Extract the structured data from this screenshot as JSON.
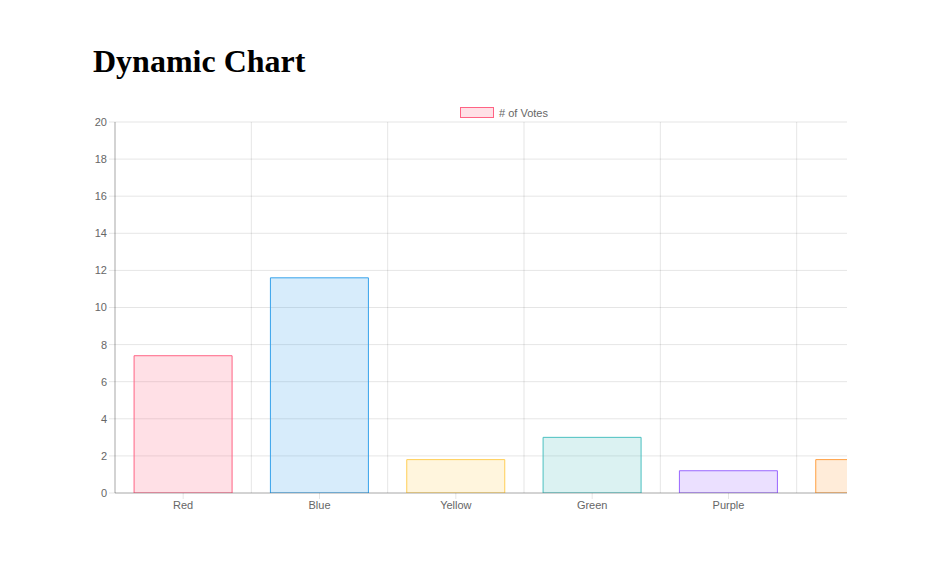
{
  "chart_data": {
    "type": "bar",
    "title": "Dynamic Chart",
    "categories": [
      "Red",
      "Blue",
      "Yellow",
      "Green",
      "Purple",
      null
    ],
    "series": [
      {
        "name": "# of Votes",
        "values": [
          7.4,
          11.6,
          1.8,
          3.0,
          1.2,
          1.8
        ]
      }
    ],
    "colors": [
      "#ff6384",
      "#36a2eb",
      "#ffce56",
      "#4bc0c0",
      "#9966ff",
      "#ff9f40"
    ],
    "ylim": [
      0,
      20
    ],
    "yticks": [
      0,
      2,
      4,
      6,
      8,
      10,
      12,
      14,
      16,
      18,
      20
    ],
    "grid": true,
    "legend": "top"
  }
}
